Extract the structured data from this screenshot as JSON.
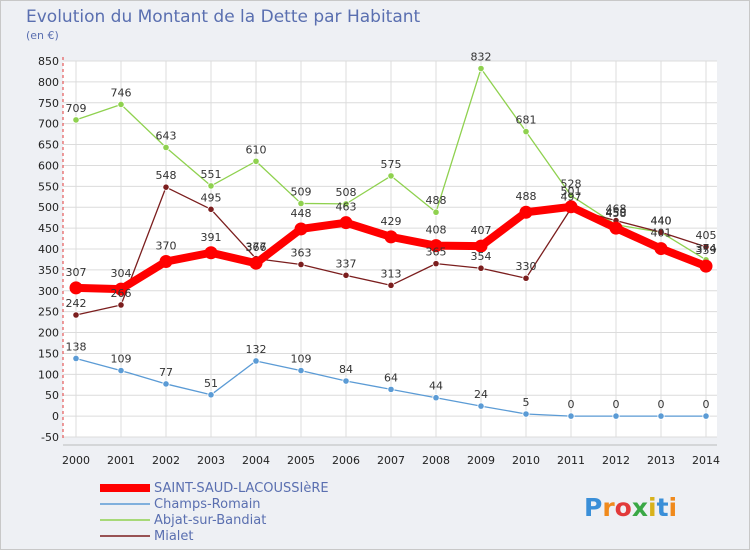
{
  "chart_data": {
    "type": "line",
    "title": "Evolution du Montant de la Dette par Habitant",
    "subtitle": "(en €)",
    "x": [
      "2000",
      "2001",
      "2002",
      "2003",
      "2004",
      "2005",
      "2006",
      "2007",
      "2008",
      "2009",
      "2010",
      "2011",
      "2012",
      "2013",
      "2014"
    ],
    "ylim": [
      -50,
      850
    ],
    "yticks": [
      -50,
      0,
      50,
      100,
      150,
      200,
      250,
      300,
      350,
      400,
      450,
      500,
      550,
      600,
      650,
      700,
      750,
      800,
      850
    ],
    "grid": true,
    "legend_position": "bottom-left",
    "series": [
      {
        "name": "SAINT-SAUD-LACOUSSIèRE",
        "color": "#ff0000",
        "values": [
          307,
          304,
          370,
          391,
          366,
          448,
          463,
          429,
          408,
          407,
          488,
          501,
          450,
          401,
          359
        ]
      },
      {
        "name": "Champs-Romain",
        "color": "#5b9bd5",
        "values": [
          138,
          109,
          77,
          51,
          132,
          109,
          84,
          64,
          44,
          24,
          5,
          0,
          0,
          0,
          0
        ]
      },
      {
        "name": "Abjat-sur-Bandiat",
        "color": "#8fd14f",
        "values": [
          709,
          746,
          643,
          551,
          610,
          509,
          508,
          575,
          488,
          832,
          681,
          528,
          458,
          440,
          374
        ]
      },
      {
        "name": "Mialet",
        "color": "#7b1e1e",
        "values": [
          242,
          266,
          548,
          495,
          377,
          363,
          337,
          313,
          365,
          354,
          330,
          497,
          468,
          440,
          405
        ]
      }
    ]
  },
  "logo": {
    "text": "Proxiti"
  }
}
